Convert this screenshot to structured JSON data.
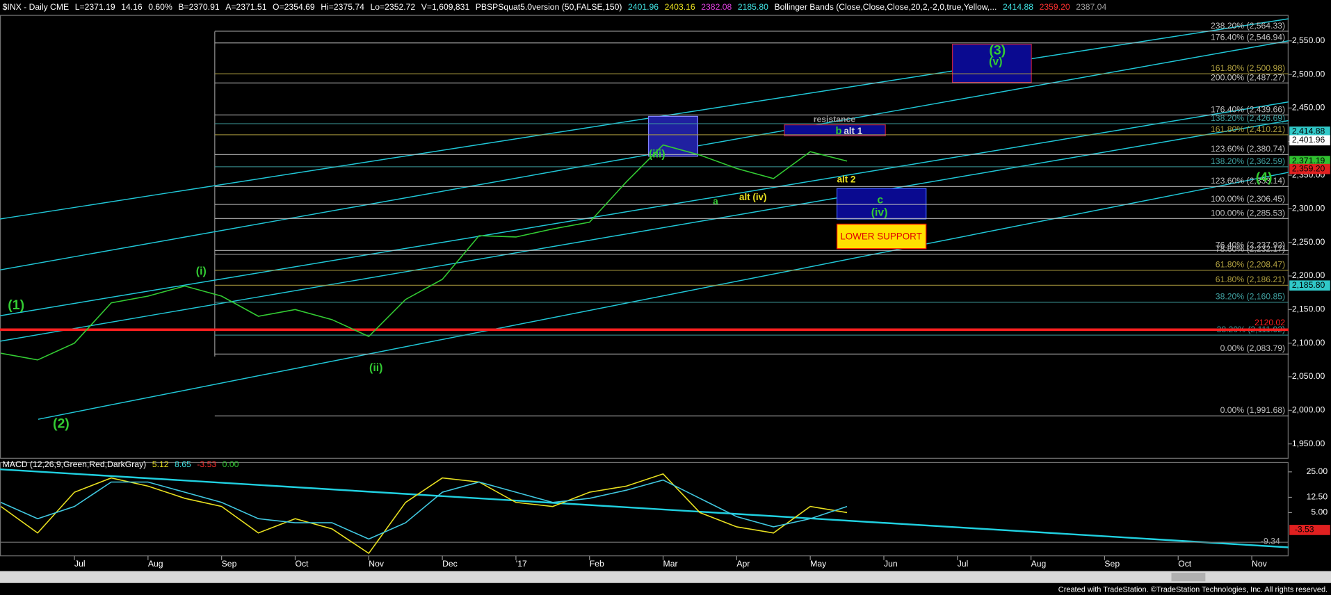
{
  "header": [
    {
      "text": "$INX - Daily  CME",
      "color": "#ffffff"
    },
    {
      "text": "L=2371.19",
      "color": "#ffffff"
    },
    {
      "text": "14.16",
      "color": "#ffffff"
    },
    {
      "text": "0.60%",
      "color": "#ffffff"
    },
    {
      "text": "B=2370.91",
      "color": "#ffffff"
    },
    {
      "text": "A=2371.51",
      "color": "#ffffff"
    },
    {
      "text": "O=2354.69",
      "color": "#ffffff"
    },
    {
      "text": "Hi=2375.74",
      "color": "#ffffff"
    },
    {
      "text": "Lo=2352.72",
      "color": "#ffffff"
    },
    {
      "text": "V=1,609,831",
      "color": "#ffffff"
    },
    {
      "text": "PBSPSquat5.0version (50,FALSE,150)",
      "color": "#ffffff"
    },
    {
      "text": "2401.96",
      "color": "#40e0e0"
    },
    {
      "text": "2403.16",
      "color": "#e8e020"
    },
    {
      "text": "2382.08",
      "color": "#e040e0"
    },
    {
      "text": "2185.80",
      "color": "#40e0e0"
    },
    {
      "text": "Bollinger Bands (Close,Close,Close,20,2,-2,0,true,Yellow,...",
      "color": "#ffffff"
    },
    {
      "text": "2414.88",
      "color": "#40e0e0"
    },
    {
      "text": "2359.20",
      "color": "#ff3030"
    },
    {
      "text": "2387.04",
      "color": "#a0a0a0"
    }
  ],
  "chart_data": [
    {
      "type": "line",
      "categories": [
        null,
        null,
        "Jul",
        null,
        "Aug",
        null,
        "Sep",
        null,
        "Oct",
        null,
        "Nov",
        null,
        "Dec",
        null,
        "'17",
        null,
        "Feb",
        null,
        "Mar",
        null,
        "Apr",
        null,
        "May",
        null,
        "Jun",
        null,
        "Jul",
        null,
        "Aug",
        null,
        "Sep",
        null,
        "Oct",
        null,
        "Nov"
      ],
      "values": [
        2085,
        2075,
        2100,
        2160,
        2170,
        2185,
        2170,
        2140,
        2150,
        2135,
        2110,
        2165,
        2195,
        2260,
        2258,
        2270,
        2280,
        2340,
        2395,
        2380,
        2360,
        2345,
        2385,
        2371,
        null,
        null,
        null,
        null,
        null,
        null,
        null,
        null,
        null,
        null,
        null
      ],
      "color": "#33cc33",
      "ylim": [
        1928.6,
        2587.9
      ],
      "yticks": [
        {
          "value": 2550,
          "label": "2,550.00"
        },
        {
          "value": 2500,
          "label": "2,500.00"
        },
        {
          "value": 2450,
          "label": "2,450.00"
        },
        {
          "value": 2400,
          "label": "2,400.00"
        },
        {
          "value": 2350,
          "label": "2,350.00"
        },
        {
          "value": 2300,
          "label": "2,300.00"
        },
        {
          "value": 2250,
          "label": "2,250.00"
        },
        {
          "value": 2200,
          "label": "2,200.00"
        },
        {
          "value": 2150,
          "label": "2,150.00"
        },
        {
          "value": 2100,
          "label": "2,100.00"
        },
        {
          "value": 2050,
          "label": "2,050.00"
        },
        {
          "value": 2000,
          "label": "2,000.00"
        },
        {
          "value": 1950,
          "label": "1,950.00"
        }
      ],
      "levels": [
        {
          "value": 2564.33,
          "label": "238.20% (2,564.33)",
          "color": "#c0c0c0"
        },
        {
          "value": 2546.94,
          "label": "176.40% (2,546.94)",
          "color": "#c0c0c0"
        },
        {
          "value": 2500.98,
          "label": "161.80% (2,500.98)",
          "color": "#b0a040"
        },
        {
          "value": 2487.27,
          "label": "200.00% (2,487.27)",
          "color": "#c0c0c0"
        },
        {
          "value": 2439.66,
          "label": "176.40% (2,439.66)",
          "color": "#c0c0c0"
        },
        {
          "value": 2426.69,
          "label": "138.20% (2,426.69)",
          "color": "#40a0a0"
        },
        {
          "value": 2410.21,
          "label": "161.80% (2,410.21)",
          "color": "#b0a040"
        },
        {
          "value": 2380.74,
          "label": "123.60% (2,380.74)",
          "color": "#c0c0c0"
        },
        {
          "value": 2362.59,
          "label": "138.20% (2,362.59)",
          "color": "#40a0a0"
        },
        {
          "value": 2333.14,
          "label": "123.60% (2,333.14)",
          "color": "#c0c0c0"
        },
        {
          "value": 2306.45,
          "label": "100.00% (2,306.45)",
          "color": "#c0c0c0"
        },
        {
          "value": 2285.53,
          "label": "100.00% (2,285.53)",
          "color": "#c0c0c0"
        },
        {
          "value": 2237.92,
          "label": "76.40% (2,237.92)",
          "color": "#c0c0c0"
        },
        {
          "value": 2232.17,
          "label": "78.60% (2,232.17)",
          "color": "#c0c0c0"
        },
        {
          "value": 2208.47,
          "label": "61.80% (2,208.47)",
          "color": "#b0a040"
        },
        {
          "value": 2186.21,
          "label": "61.80% (2,186.21)",
          "color": "#b0a040"
        },
        {
          "value": 2160.85,
          "label": "38.20% (2,160.85)",
          "color": "#40a0a0"
        },
        {
          "value": 2111.92,
          "label": "38.20% (2,111.92)",
          "color": "#40a0a0"
        },
        {
          "value": 2083.79,
          "label": "0.00% (2,083.79)",
          "color": "#c0c0c0"
        },
        {
          "value": 1991.68,
          "label": "0.00% (1,991.68)",
          "color": "#c0c0c0"
        }
      ],
      "reference_line": {
        "value": 2120.02,
        "color": "#ff2020"
      },
      "price_tags": [
        {
          "value": 2414.88,
          "label": "2,414.88",
          "color": "#30c8c8"
        },
        {
          "value": 2401.96,
          "label": "2,401.96",
          "color": "#ffffff"
        },
        {
          "value": 2371.19,
          "label": "2,371.19",
          "color": "#30c030"
        },
        {
          "value": 2359.2,
          "label": "2,359.20",
          "color": "#e02020"
        },
        {
          "value": 2185.8,
          "label": "2,185.80",
          "color": "#30c8c8"
        }
      ],
      "annotations": [
        {
          "text": "(1)",
          "color": "#33cc33"
        },
        {
          "text": "(2)",
          "color": "#33cc33"
        },
        {
          "text": "(i)",
          "color": "#33cc33"
        },
        {
          "text": "(ii)",
          "color": "#33cc33"
        },
        {
          "text": "(iii)",
          "color": "#33cc33"
        },
        {
          "text": "(3)",
          "color": "#33cc33"
        },
        {
          "text": "(v)",
          "color": "#33cc33"
        },
        {
          "text": "(4)",
          "color": "#33cc33"
        },
        {
          "text": "a",
          "color": "#33cc33"
        },
        {
          "text": "alt (iv)",
          "color": "#e8e020"
        },
        {
          "text": "resistance",
          "color": "#a0a0a0"
        },
        {
          "text": "b",
          "color": "#33cc33"
        },
        {
          "text": "alt 1",
          "color": "#e0e0e0"
        },
        {
          "text": "alt 2",
          "color": "#e8e020"
        },
        {
          "text": "c",
          "color": "#33cc33"
        },
        {
          "text": "(iv)",
          "color": "#33cc33"
        }
      ],
      "callout": "LOWER SUPPORT"
    },
    {
      "type": "line",
      "title": "MACD (12,26,9,Green,Red,DarkGray)",
      "readings": [
        {
          "text": "5.12",
          "color": "#e8e020"
        },
        {
          "text": "8.65",
          "color": "#40e0e0"
        },
        {
          "text": "-3.53",
          "color": "#ff3030"
        },
        {
          "text": "0.00",
          "color": "#33cc33"
        }
      ],
      "series": [
        {
          "color": "#e8e020",
          "values": [
            8,
            -5,
            15,
            22,
            18,
            12,
            8,
            -5,
            2,
            -3,
            -15,
            10,
            22,
            20,
            10,
            8,
            15,
            18,
            24,
            5,
            -2,
            -5,
            8,
            5,
            null,
            null,
            null,
            null,
            null,
            null,
            null,
            null,
            null,
            null,
            null
          ]
        },
        {
          "color": "#40c8e0",
          "values": [
            10,
            2,
            8,
            20,
            20,
            15,
            10,
            2,
            0,
            0,
            -8,
            0,
            15,
            20,
            15,
            10,
            12,
            16,
            21,
            12,
            3,
            -2,
            2,
            8,
            null,
            null,
            null,
            null,
            null,
            null,
            null,
            null,
            null,
            null,
            null
          ]
        }
      ],
      "ylim": [
        -16.25,
        29.58
      ],
      "yticks": [
        {
          "value": 25,
          "label": "25.00"
        },
        {
          "value": 12.5,
          "label": "12.50"
        },
        {
          "value": 5,
          "label": "5.00"
        }
      ],
      "tags": [
        {
          "value": -3.53,
          "color": "#e02020"
        },
        {
          "value": -9.34,
          "color": null
        }
      ]
    }
  ],
  "footer": "Created with TradeStation. ©TradeStation Technologies, Inc. All rights reserved."
}
